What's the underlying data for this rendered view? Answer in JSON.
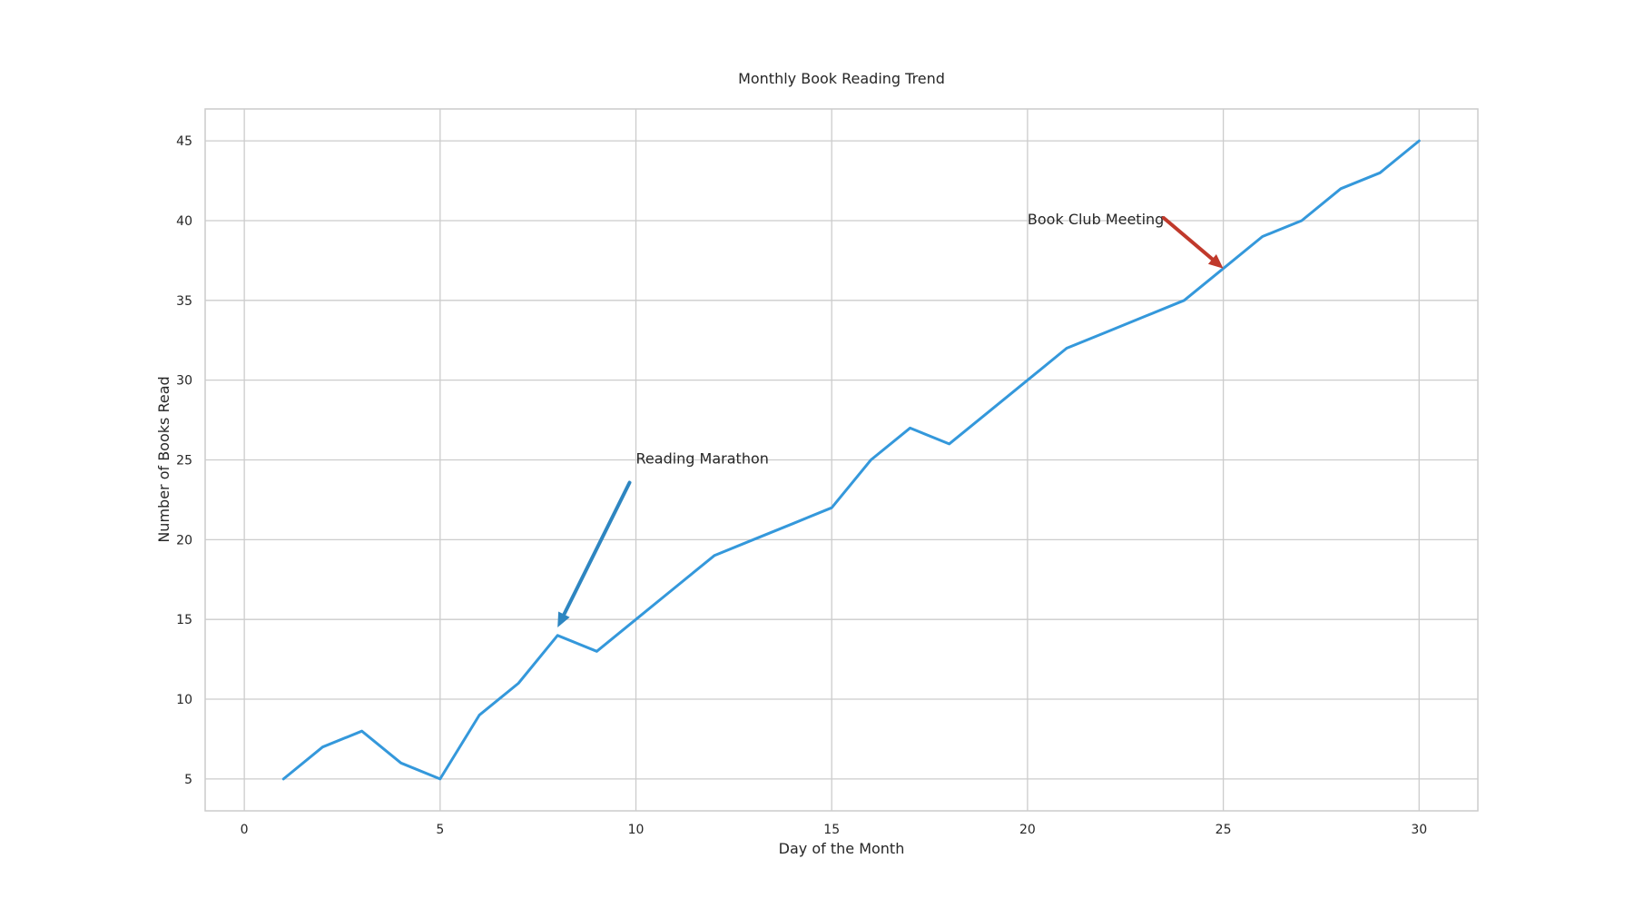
{
  "chart_data": {
    "type": "line",
    "title": "Monthly Book Reading Trend",
    "xlabel": "Day of the Month",
    "ylabel": "Number of Books Read",
    "xlim": [
      -1,
      31.5
    ],
    "ylim": [
      3,
      47
    ],
    "xticks": [
      0,
      5,
      10,
      15,
      20,
      25,
      30
    ],
    "yticks": [
      5,
      10,
      15,
      20,
      25,
      30,
      35,
      40,
      45
    ],
    "grid": true,
    "series": [
      {
        "color": "#3498db",
        "x": [
          1,
          2,
          3,
          4,
          5,
          6,
          7,
          8,
          9,
          10,
          11,
          12,
          13,
          14,
          15,
          16,
          17,
          18,
          19,
          20,
          21,
          22,
          23,
          24,
          25,
          26,
          27,
          28,
          29,
          30
        ],
        "y": [
          5,
          7,
          8,
          6,
          5,
          9,
          11,
          14,
          13,
          15,
          17,
          19,
          20,
          21,
          22,
          25,
          27,
          26,
          28,
          30,
          32,
          33,
          34,
          35,
          37,
          39,
          40,
          42,
          43,
          45
        ]
      }
    ],
    "annotations": [
      {
        "text": "Reading Marathon",
        "point": [
          8,
          14.5
        ],
        "text_at": [
          10,
          25
        ],
        "arrow_color": "#2e86c1"
      },
      {
        "text": "Book Club Meeting",
        "point": [
          25,
          37
        ],
        "text_at": [
          20,
          40
        ],
        "arrow_color": "#c0392b"
      }
    ]
  }
}
